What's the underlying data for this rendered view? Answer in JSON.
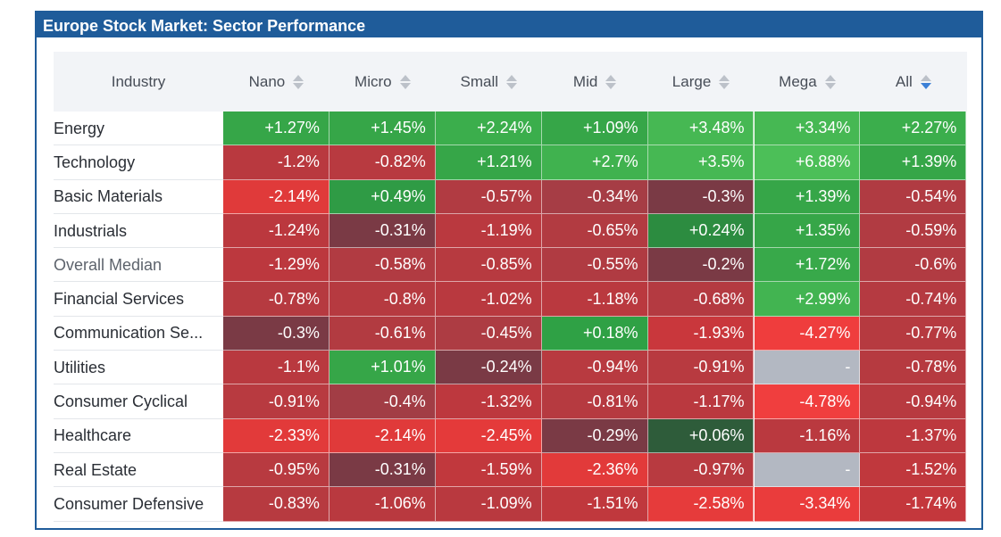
{
  "title": "Europe Stock Market: Sector Performance",
  "colors": {
    "title_bg": "#1f5c9a",
    "strong_positive": "#3fa84a",
    "positive": "#2fa845",
    "slight_positive": "#2b6b3a",
    "neutral_negative": "#7a3a45",
    "negative": "#b83a40",
    "strong_negative": "#e03a3a",
    "missing": "#b3b8c2"
  },
  "columns": [
    {
      "label": "Industry"
    },
    {
      "label": "Nano",
      "sort_icon": "sort-icon"
    },
    {
      "label": "Micro",
      "sort_icon": "sort-icon"
    },
    {
      "label": "Small",
      "sort_icon": "sort-icon"
    },
    {
      "label": "Mid",
      "sort_icon": "sort-icon"
    },
    {
      "label": "Large",
      "sort_icon": "sort-icon"
    },
    {
      "label": "Mega",
      "sort_icon": "sort-icon"
    },
    {
      "label": "All",
      "sort_icon": "sort-icon-active"
    }
  ],
  "chart_data": {
    "type": "heatmap",
    "title": "Europe Stock Market: Sector Performance",
    "columns": [
      "Nano",
      "Micro",
      "Small",
      "Mid",
      "Large",
      "Mega",
      "All"
    ],
    "rows": [
      {
        "industry": "Energy",
        "values": [
          "+1.27%",
          "+1.45%",
          "+2.24%",
          "+1.09%",
          "+3.48%",
          "+3.34%",
          "+2.27%"
        ],
        "colors": [
          "#36a648",
          "#36a648",
          "#3bae4c",
          "#36a648",
          "#46b853",
          "#46b853",
          "#3bae4c"
        ]
      },
      {
        "industry": "Technology",
        "values": [
          "-1.2%",
          "-0.82%",
          "+1.21%",
          "+2.7%",
          "+3.5%",
          "+6.88%",
          "+1.39%"
        ],
        "colors": [
          "#b9393f",
          "#b83a40",
          "#36a648",
          "#40b24f",
          "#46b853",
          "#4cbf58",
          "#36a648"
        ]
      },
      {
        "industry": "Basic Materials",
        "values": [
          "-2.14%",
          "+0.49%",
          "-0.57%",
          "-0.34%",
          "-0.3%",
          "+1.39%",
          "-0.54%"
        ],
        "colors": [
          "#e03a3a",
          "#2f9b45",
          "#b13b42",
          "#a63d45",
          "#7a3a45",
          "#36a648",
          "#b03b42"
        ]
      },
      {
        "industry": "Industrials",
        "values": [
          "-1.24%",
          "-0.31%",
          "-1.19%",
          "-0.65%",
          "+0.24%",
          "+1.35%",
          "-0.59%"
        ],
        "colors": [
          "#bb383e",
          "#7a3a45",
          "#ba393f",
          "#b23b41",
          "#2c8c40",
          "#36a648",
          "#b13b42"
        ]
      },
      {
        "industry": "Overall Median",
        "muted": true,
        "values": [
          "-1.29%",
          "-0.58%",
          "-0.85%",
          "-0.55%",
          "-0.2%",
          "+1.72%",
          "-0.6%"
        ],
        "colors": [
          "#bc383e",
          "#b13b42",
          "#b73a40",
          "#b03b42",
          "#7a3a45",
          "#38a94a",
          "#b13b42"
        ]
      },
      {
        "industry": "Financial Services",
        "values": [
          "-0.78%",
          "-0.8%",
          "-1.02%",
          "-1.18%",
          "-0.68%",
          "+2.99%",
          "-0.74%"
        ],
        "colors": [
          "#b63a40",
          "#b63a40",
          "#b9393f",
          "#ba393f",
          "#b43a41",
          "#42b451",
          "#b53a41"
        ]
      },
      {
        "industry": "Communication Se...",
        "values": [
          "-0.3%",
          "-0.61%",
          "-0.45%",
          "+0.18%",
          "-1.93%",
          "-4.27%",
          "-0.77%"
        ],
        "colors": [
          "#7a3a45",
          "#b23b41",
          "#ad3c43",
          "#2fa145",
          "#c9373c",
          "#ef3d3d",
          "#b63a40"
        ]
      },
      {
        "industry": "Utilities",
        "values": [
          "-1.1%",
          "+1.01%",
          "-0.24%",
          "-0.94%",
          "-0.91%",
          "-",
          "-0.78%"
        ],
        "colors": [
          "#b9393f",
          "#36a648",
          "#7a3a45",
          "#b83a40",
          "#b83a40",
          "#b3b8c2",
          "#b63a40"
        ]
      },
      {
        "industry": "Consumer Cyclical",
        "values": [
          "-0.91%",
          "-0.4%",
          "-1.32%",
          "-0.81%",
          "-1.17%",
          "-4.78%",
          "-0.94%"
        ],
        "colors": [
          "#b83a40",
          "#a23d45",
          "#bd383e",
          "#b63a40",
          "#ba393f",
          "#f03e3e",
          "#b83a40"
        ]
      },
      {
        "industry": "Healthcare",
        "values": [
          "-2.33%",
          "-2.14%",
          "-2.45%",
          "-0.29%",
          "+0.06%",
          "-1.16%",
          "-1.37%"
        ],
        "colors": [
          "#e23a3a",
          "#e03a3a",
          "#e43a3a",
          "#7a3a45",
          "#2e5c3a",
          "#ba393f",
          "#bd383e"
        ]
      },
      {
        "industry": "Real Estate",
        "values": [
          "-0.95%",
          "-0.31%",
          "-1.59%",
          "-2.36%",
          "-0.97%",
          "-",
          "-1.52%"
        ],
        "colors": [
          "#b83a40",
          "#7a3a45",
          "#c1383d",
          "#e23a3a",
          "#b83a40",
          "#b3b8c2",
          "#c0383d"
        ]
      },
      {
        "industry": "Consumer Defensive",
        "values": [
          "-0.83%",
          "-1.06%",
          "-1.09%",
          "-1.51%",
          "-2.58%",
          "-3.34%",
          "-1.74%"
        ],
        "colors": [
          "#b73a40",
          "#b9393f",
          "#b9393f",
          "#c0383d",
          "#e63b3b",
          "#ea3c3c",
          "#c4373c"
        ]
      }
    ]
  }
}
